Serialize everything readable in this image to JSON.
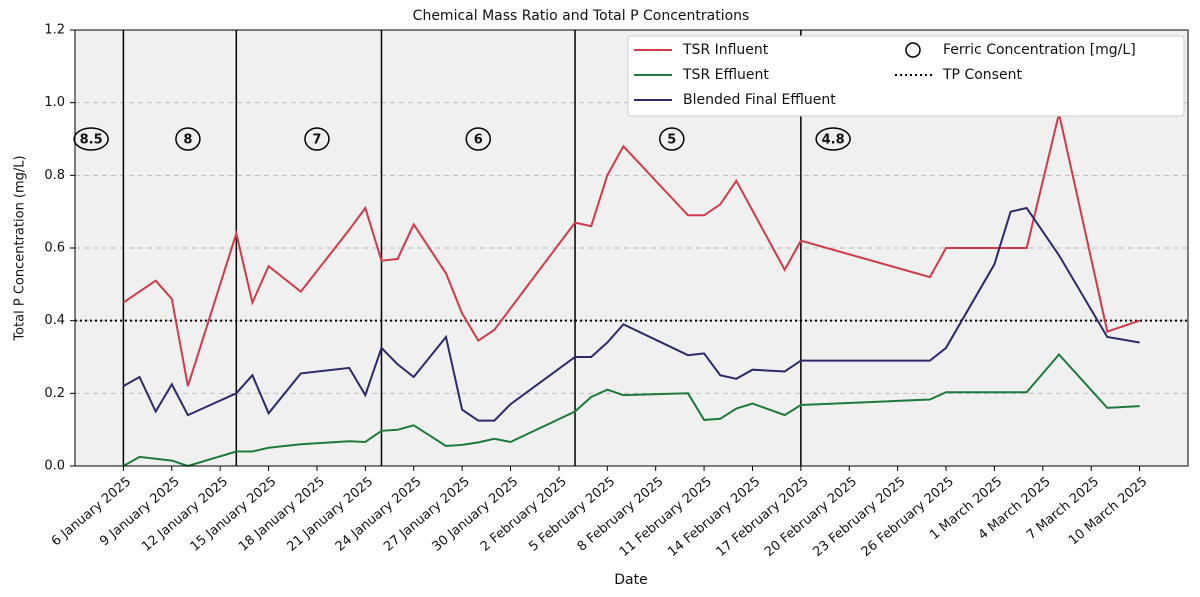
{
  "chart_data": {
    "type": "line",
    "title": "Chemical Mass Ratio and Total P Concentrations",
    "x_label": "Date",
    "y_label": "Total P Concentration (mg/L)",
    "xlim": [
      "2025-01-03",
      "2025-03-13"
    ],
    "ylim": [
      0,
      1.2
    ],
    "yticks": [
      {
        "value": 0,
        "label": "0.0"
      },
      0.2,
      0.4,
      0.6,
      0.8,
      {
        "value": 1,
        "label": "1.0"
      },
      1.2
    ],
    "xticks": [
      {
        "value": "2025-01-06",
        "label": "6 January 2025"
      },
      {
        "value": "2025-01-09",
        "label": "9 January 2025"
      },
      {
        "value": "2025-01-12",
        "label": "12 January 2025"
      },
      {
        "value": "2025-01-15",
        "label": "15 January 2025"
      },
      {
        "value": "2025-01-18",
        "label": "18 January 2025"
      },
      {
        "value": "2025-01-21",
        "label": "21 January 2025"
      },
      {
        "value": "2025-01-24",
        "label": "24 January 2025"
      },
      {
        "value": "2025-01-27",
        "label": "27 January 2025"
      },
      {
        "value": "2025-01-30",
        "label": "30 January 2025"
      },
      {
        "value": "2025-02-02",
        "label": "2 February 2025"
      },
      {
        "value": "2025-02-05",
        "label": "5 February 2025"
      },
      {
        "value": "2025-02-08",
        "label": "8 February 2025"
      },
      {
        "value": "2025-02-11",
        "label": "11 February 2025"
      },
      {
        "value": "2025-02-14",
        "label": "14 February 2025"
      },
      {
        "value": "2025-02-17",
        "label": "17 February 2025"
      },
      {
        "value": "2025-02-20",
        "label": "20 February 2025"
      },
      {
        "value": "2025-02-23",
        "label": "23 February 2025"
      },
      {
        "value": "2025-02-26",
        "label": "26 February 2025"
      },
      {
        "value": "2025-03-01",
        "label": "1 March 2025"
      },
      {
        "value": "2025-03-04",
        "label": "4 March 2025"
      },
      {
        "value": "2025-03-07",
        "label": "7 March 2025"
      },
      {
        "value": "2025-03-10",
        "label": "10 March 2025"
      }
    ],
    "grid": true,
    "legend_position": "upper right",
    "series": [
      {
        "name": "TSR Influent",
        "color": "#d13a4a",
        "x": [
          "2025-01-06",
          "2025-01-07",
          "2025-01-08",
          "2025-01-09",
          "2025-01-10",
          "2025-01-13",
          "2025-01-14",
          "2025-01-15",
          "2025-01-17",
          "2025-01-20",
          "2025-01-21",
          "2025-01-22",
          "2025-01-23",
          "2025-01-24",
          "2025-01-26",
          "2025-01-27",
          "2025-01-28",
          "2025-01-29",
          "2025-02-03",
          "2025-02-04",
          "2025-02-05",
          "2025-02-06",
          "2025-02-10",
          "2025-02-11",
          "2025-02-12",
          "2025-02-13",
          "2025-02-16",
          "2025-02-17",
          "2025-02-25",
          "2025-02-26",
          "2025-03-03",
          "2025-03-05",
          "2025-03-08",
          "2025-03-10"
        ],
        "values": [
          0.45,
          0.48,
          0.51,
          0.46,
          0.22,
          0.64,
          0.45,
          0.55,
          0.48,
          0.65,
          0.71,
          0.565,
          0.57,
          0.665,
          0.53,
          0.42,
          0.345,
          0.375,
          0.67,
          0.66,
          0.8,
          0.88,
          0.69,
          0.69,
          0.72,
          0.785,
          0.54,
          0.62,
          0.52,
          0.6,
          0.6,
          0.97,
          0.37,
          0.4
        ]
      },
      {
        "name": "TSR Effluent",
        "color": "#1e7a3a",
        "x": [
          "2025-01-06",
          "2025-01-07",
          "2025-01-08",
          "2025-01-09",
          "2025-01-10",
          "2025-01-13",
          "2025-01-14",
          "2025-01-15",
          "2025-01-17",
          "2025-01-20",
          "2025-01-21",
          "2025-01-22",
          "2025-01-23",
          "2025-01-24",
          "2025-01-26",
          "2025-01-27",
          "2025-01-28",
          "2025-01-29",
          "2025-01-30",
          "2025-02-03",
          "2025-02-04",
          "2025-02-05",
          "2025-02-06",
          "2025-02-10",
          "2025-02-11",
          "2025-02-12",
          "2025-02-13",
          "2025-02-14",
          "2025-02-16",
          "2025-02-17",
          "2025-02-25",
          "2025-02-26",
          "2025-03-03",
          "2025-03-05",
          "2025-03-08",
          "2025-03-10"
        ],
        "values": [
          0.0,
          0.025,
          0.02,
          0.015,
          0.0,
          0.04,
          0.04,
          0.05,
          0.06,
          0.068,
          0.066,
          0.097,
          0.1,
          0.112,
          0.055,
          0.058,
          0.065,
          0.075,
          0.066,
          0.15,
          0.19,
          0.21,
          0.195,
          0.2,
          0.127,
          0.13,
          0.158,
          0.172,
          0.14,
          0.168,
          0.183,
          0.203,
          0.203,
          0.307,
          0.16,
          0.165
        ]
      },
      {
        "name": "Blended Final Effluent",
        "color": "#2b2a6b",
        "x": [
          "2025-01-06",
          "2025-01-07",
          "2025-01-08",
          "2025-01-09",
          "2025-01-10",
          "2025-01-13",
          "2025-01-14",
          "2025-01-15",
          "2025-01-17",
          "2025-01-20",
          "2025-01-21",
          "2025-01-22",
          "2025-01-23",
          "2025-01-24",
          "2025-01-26",
          "2025-01-27",
          "2025-01-28",
          "2025-01-29",
          "2025-01-30",
          "2025-02-03",
          "2025-02-04",
          "2025-02-05",
          "2025-02-06",
          "2025-02-10",
          "2025-02-11",
          "2025-02-12",
          "2025-02-13",
          "2025-02-14",
          "2025-02-16",
          "2025-02-17",
          "2025-02-25",
          "2025-02-26",
          "2025-03-01",
          "2025-03-02",
          "2025-03-03",
          "2025-03-05",
          "2025-03-08",
          "2025-03-10"
        ],
        "values": [
          0.22,
          0.245,
          0.15,
          0.225,
          0.14,
          0.2,
          0.25,
          0.145,
          0.255,
          0.27,
          0.195,
          0.325,
          0.28,
          0.245,
          0.355,
          0.155,
          0.125,
          0.125,
          0.17,
          0.3,
          0.3,
          0.34,
          0.39,
          0.305,
          0.31,
          0.25,
          0.24,
          0.265,
          0.26,
          0.29,
          0.29,
          0.325,
          0.555,
          0.7,
          0.71,
          0.58,
          0.355,
          0.34
        ]
      }
    ],
    "tp_consent": {
      "name": "TP Consent",
      "value": 0.4,
      "color": "#000000"
    },
    "dividers": [
      "2025-01-06",
      "2025-01-13",
      "2025-01-22",
      "2025-02-03",
      "2025-02-17"
    ],
    "ferric": {
      "name": "Ferric Concentration [mg/L]",
      "y": 0.9,
      "x": [
        "2025-01-04",
        "2025-01-10",
        "2025-01-18",
        "2025-01-28",
        "2025-02-09",
        "2025-02-19"
      ],
      "values": [
        8.5,
        8,
        7,
        6,
        5,
        4.8
      ]
    }
  }
}
